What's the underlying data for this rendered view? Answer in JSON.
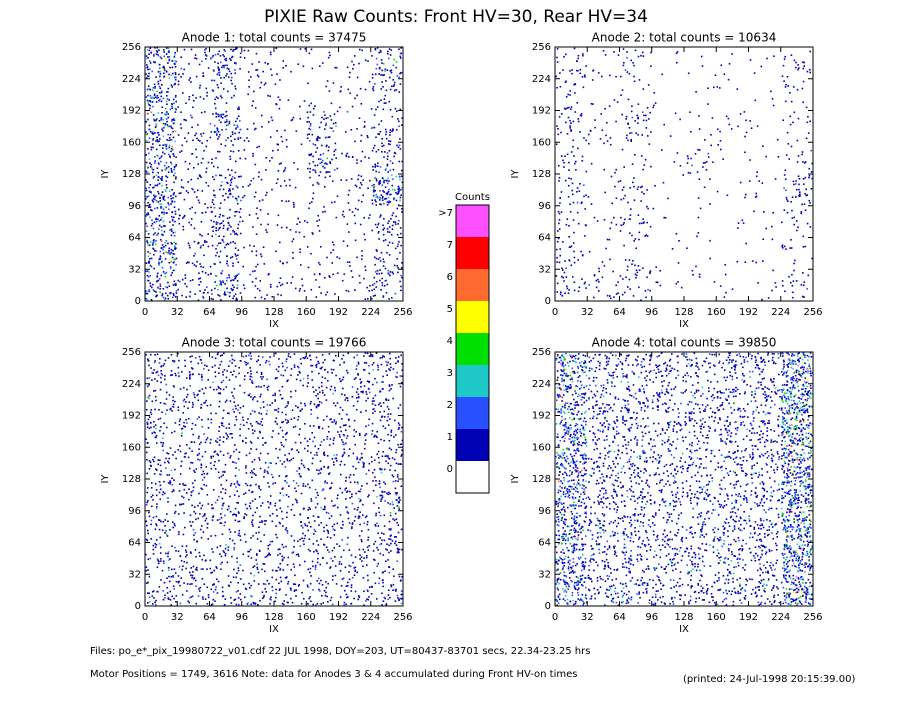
{
  "title": "PIXIE Raw Counts:  Front HV=30, Rear HV=34",
  "chart_data": [
    {
      "type": "heatmap",
      "title": "Anode 1: total counts = 37475",
      "xlabel": "IX",
      "ylabel": "IY",
      "xlim": [
        0,
        256
      ],
      "ylim": [
        0,
        256
      ],
      "xticks": [
        0,
        32,
        64,
        96,
        128,
        160,
        192,
        224,
        256
      ],
      "yticks": [
        0,
        32,
        64,
        96,
        128,
        160,
        192,
        224,
        256
      ],
      "values": [
        [
          0.7,
          0.2,
          0.5,
          0.15,
          0.08,
          0.08,
          0.1,
          0.4
        ],
        [
          0.6,
          0.15,
          0.2,
          0.1,
          0.08,
          0.08,
          0.1,
          0.25
        ],
        [
          0.7,
          0.2,
          0.5,
          0.1,
          0.08,
          0.35,
          0.1,
          0.25
        ],
        [
          0.6,
          0.15,
          0.15,
          0.1,
          0.1,
          0.4,
          0.1,
          0.35
        ],
        [
          0.7,
          0.2,
          0.4,
          0.12,
          0.1,
          0.12,
          0.15,
          0.8
        ],
        [
          0.6,
          0.2,
          0.45,
          0.1,
          0.1,
          0.1,
          0.12,
          0.3
        ],
        [
          0.7,
          0.2,
          0.3,
          0.1,
          0.1,
          0.1,
          0.1,
          0.25
        ],
        [
          0.6,
          0.25,
          0.5,
          0.15,
          0.12,
          0.12,
          0.12,
          0.35
        ]
      ]
    },
    {
      "type": "heatmap",
      "title": "Anode 2: total counts = 10634",
      "xlabel": "IX",
      "ylabel": "IY",
      "xlim": [
        0,
        256
      ],
      "ylim": [
        0,
        256
      ],
      "xticks": [
        0,
        32,
        64,
        96,
        128,
        160,
        192,
        224,
        256
      ],
      "yticks": [
        0,
        32,
        64,
        96,
        128,
        160,
        192,
        224,
        256
      ],
      "values": [
        [
          0.2,
          0.08,
          0.15,
          0.03,
          0.03,
          0.03,
          0.04,
          0.15
        ],
        [
          0.15,
          0.05,
          0.08,
          0.03,
          0.03,
          0.03,
          0.03,
          0.1
        ],
        [
          0.2,
          0.1,
          0.25,
          0.03,
          0.05,
          0.1,
          0.03,
          0.1
        ],
        [
          0.15,
          0.05,
          0.08,
          0.03,
          0.15,
          0.03,
          0.04,
          0.12
        ],
        [
          0.2,
          0.06,
          0.15,
          0.03,
          0.04,
          0.04,
          0.06,
          0.3
        ],
        [
          0.15,
          0.05,
          0.2,
          0.03,
          0.03,
          0.03,
          0.04,
          0.12
        ],
        [
          0.2,
          0.06,
          0.1,
          0.03,
          0.03,
          0.03,
          0.04,
          0.1
        ],
        [
          0.2,
          0.15,
          0.2,
          0.05,
          0.04,
          0.04,
          0.05,
          0.15
        ]
      ]
    },
    {
      "type": "heatmap",
      "title": "Anode 3: total counts = 19766",
      "xlabel": "IX",
      "ylabel": "IY",
      "xlim": [
        0,
        256
      ],
      "ylim": [
        0,
        256
      ],
      "xticks": [
        0,
        32,
        64,
        96,
        128,
        160,
        192,
        224,
        256
      ],
      "yticks": [
        0,
        32,
        64,
        96,
        128,
        160,
        192,
        224,
        256
      ],
      "values": [
        [
          0.35,
          0.3,
          0.3,
          0.3,
          0.3,
          0.3,
          0.3,
          0.35
        ],
        [
          0.3,
          0.28,
          0.28,
          0.25,
          0.25,
          0.28,
          0.28,
          0.3
        ],
        [
          0.3,
          0.28,
          0.28,
          0.25,
          0.25,
          0.28,
          0.28,
          0.3
        ],
        [
          0.3,
          0.28,
          0.28,
          0.25,
          0.25,
          0.28,
          0.28,
          0.35
        ],
        [
          0.3,
          0.28,
          0.28,
          0.25,
          0.25,
          0.28,
          0.28,
          0.4
        ],
        [
          0.3,
          0.28,
          0.28,
          0.25,
          0.25,
          0.28,
          0.28,
          0.3
        ],
        [
          0.3,
          0.28,
          0.28,
          0.25,
          0.25,
          0.28,
          0.28,
          0.3
        ],
        [
          0.35,
          0.3,
          0.3,
          0.3,
          0.3,
          0.3,
          0.3,
          0.35
        ]
      ]
    },
    {
      "type": "heatmap",
      "title": "Anode 4: total counts = 39850",
      "xlabel": "IX",
      "ylabel": "IY",
      "xlim": [
        0,
        256
      ],
      "ylim": [
        0,
        256
      ],
      "xticks": [
        0,
        32,
        64,
        96,
        128,
        160,
        192,
        224,
        256
      ],
      "yticks": [
        0,
        32,
        64,
        96,
        128,
        160,
        192,
        224,
        256
      ],
      "values": [
        [
          0.8,
          0.4,
          0.4,
          0.35,
          0.35,
          0.4,
          0.4,
          1.0
        ],
        [
          0.8,
          0.4,
          0.4,
          0.35,
          0.35,
          0.4,
          0.4,
          1.1
        ],
        [
          0.8,
          0.4,
          0.4,
          0.35,
          0.35,
          0.4,
          0.4,
          1.0
        ],
        [
          0.8,
          0.4,
          0.4,
          0.35,
          0.35,
          0.4,
          0.4,
          1.0
        ],
        [
          0.8,
          0.4,
          0.4,
          0.35,
          0.35,
          0.4,
          0.4,
          1.0
        ],
        [
          0.8,
          0.4,
          0.4,
          0.35,
          0.35,
          0.4,
          0.4,
          1.0
        ],
        [
          0.8,
          0.4,
          0.4,
          0.35,
          0.35,
          0.4,
          0.4,
          1.0
        ],
        [
          0.8,
          0.4,
          0.4,
          0.35,
          0.35,
          0.4,
          0.4,
          1.0
        ]
      ]
    }
  ],
  "colorbar": {
    "title": "Counts",
    "ticks": [
      0,
      1,
      2,
      3,
      4,
      5,
      6,
      7,
      {
        "value": 8,
        "label": ">7"
      }
    ],
    "colors": [
      "#ffffff",
      "#0000b4",
      "#2850ff",
      "#1ec8c8",
      "#00e000",
      "#ffff00",
      "#ff6a30",
      "#ff0000",
      "#ff50ff"
    ]
  },
  "footer": [
    "Files: po_e*_pix_19980722_v01.cdf    22 JUL 1998, DOY=203, UT=80437-83701 secs, 22.34-23.25 hrs",
    "Motor Positions = 1749, 3616    Note: data for Anodes 3 & 4 accumulated during Front HV-on times"
  ],
  "printed": "(printed: 24-Jul-1998 20:15:39.00)"
}
